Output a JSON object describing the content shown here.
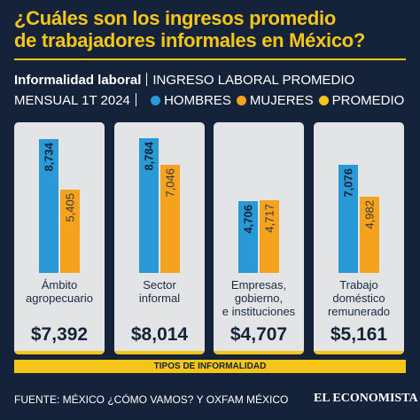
{
  "chart_data": {
    "type": "bar",
    "title": "¿Cuáles son los ingresos promedio\nde trabajadores informales en México?",
    "subtitle": "Informalidad laboral",
    "description_line1": "INGRESO LABORAL PROMEDIO",
    "description_line2": "MENSUAL 1T 2024",
    "categories": [
      "Ámbito\nagropecuario",
      "Sector\ninformal",
      "Empresas,\ngobierno,\ne instituciones",
      "Trabajo\ndoméstico\nremunerado"
    ],
    "series": [
      {
        "name": "HOMBRES",
        "color": "#2a9ad6",
        "values": [
          8734,
          8784,
          4706,
          7076
        ],
        "value_labels": [
          "8,734",
          "8,784",
          "4,706",
          "7,076"
        ]
      },
      {
        "name": "MUJERES",
        "color": "#f5a31f",
        "values": [
          5405,
          7046,
          4717,
          4982
        ],
        "value_labels": [
          "5,405",
          "7,046",
          "4,717",
          "4,982"
        ]
      },
      {
        "name": "PROMEDIO",
        "color": "#f5c518",
        "values": [
          7392,
          8014,
          4707,
          5161
        ],
        "value_labels": [
          "$7,392",
          "$8,014",
          "$4,707",
          "$5,161"
        ]
      }
    ],
    "x_label": "TIPOS DE INFORMALIDAD",
    "source": "FUENTE: MÉXICO ¿CÓMO VAMOS? Y OXFAM MÉXICO",
    "brand": "EL ECONOMISTA"
  }
}
